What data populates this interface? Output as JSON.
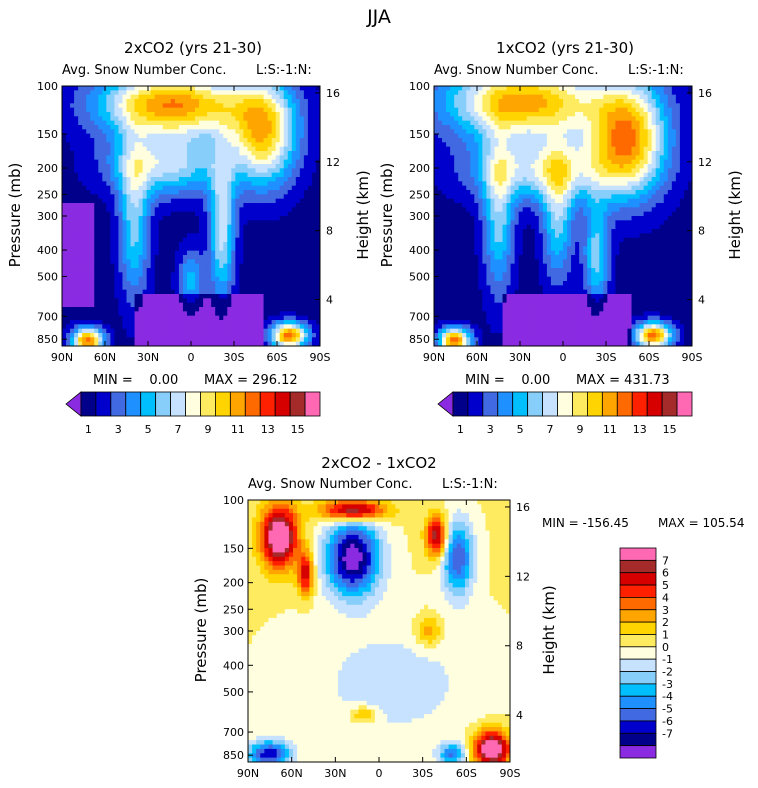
{
  "figure_title": "JJA",
  "chart_data": [
    {
      "type": "heatmap",
      "title": "2xCO2 (yrs 21-30)",
      "subtitle_left": "Avg. Snow Number Conc.",
      "subtitle_right": "L:S:-1:N:",
      "xlabel": "",
      "ylabel": "Pressure (mb)",
      "ylabel_right": "Height (km)",
      "x_ticks": [
        "90N",
        "60N",
        "30N",
        "0",
        "30S",
        "60S",
        "90S"
      ],
      "y_ticks_pressure": [
        "100",
        "150",
        "200",
        "250",
        "300",
        "400",
        "500",
        "700",
        "850"
      ],
      "y_ticks_height": [
        "16",
        "12",
        "8",
        "4"
      ],
      "min_label": "MIN =    0.00",
      "max_label": "MAX = 296.12",
      "min": 0.0,
      "max": 296.12,
      "colorbar_ticks": [
        "1",
        "3",
        "5",
        "7",
        "9",
        "11",
        "13",
        "15"
      ]
    },
    {
      "type": "heatmap",
      "title": "1xCO2 (yrs 21-30)",
      "subtitle_left": "Avg. Snow Number Conc.",
      "subtitle_right": "L:S:-1:N:",
      "xlabel": "",
      "ylabel": "Pressure (mb)",
      "ylabel_right": "Height (km)",
      "x_ticks": [
        "90N",
        "60N",
        "30N",
        "0",
        "30S",
        "60S",
        "90S"
      ],
      "y_ticks_pressure": [
        "100",
        "150",
        "200",
        "250",
        "300",
        "400",
        "500",
        "700",
        "850"
      ],
      "y_ticks_height": [
        "16",
        "12",
        "8",
        "4"
      ],
      "min_label": "MIN =    0.00",
      "max_label": "MAX = 431.73",
      "min": 0.0,
      "max": 431.73,
      "colorbar_ticks": [
        "1",
        "3",
        "5",
        "7",
        "9",
        "11",
        "13",
        "15"
      ]
    },
    {
      "type": "heatmap",
      "title": "2xCO2 - 1xCO2",
      "subtitle_left": "Avg. Snow Number Conc.",
      "subtitle_right": "L:S:-1:N:",
      "xlabel": "",
      "ylabel": "Pressure (mb)",
      "ylabel_right": "Height (km)",
      "x_ticks": [
        "90N",
        "60N",
        "30N",
        "0",
        "30S",
        "60S",
        "90S"
      ],
      "y_ticks_pressure": [
        "100",
        "150",
        "200",
        "250",
        "300",
        "400",
        "500",
        "700",
        "850"
      ],
      "y_ticks_height": [
        "16",
        "12",
        "8",
        "4"
      ],
      "min_label": "MIN = -156.45",
      "max_label": "MAX = 105.54",
      "min": -156.45,
      "max": 105.54,
      "colorbar_ticks": [
        "7",
        "6",
        "5",
        "4",
        "3",
        "2",
        "1",
        "0",
        "-1",
        "-2",
        "-3",
        "-4",
        "-5",
        "-6",
        "-7"
      ]
    }
  ],
  "palette_abs": [
    "#8a2be2",
    "#00008b",
    "#0000cd",
    "#4169e1",
    "#1e90ff",
    "#00bfff",
    "#87cefa",
    "#c6e2ff",
    "#ffffe0",
    "#ffeb60",
    "#ffd400",
    "#ffa500",
    "#ff6a00",
    "#ff2000",
    "#d60000",
    "#a52a2a",
    "#ff69b4"
  ],
  "palette_diff": [
    "#ff69b4",
    "#a52a2a",
    "#d60000",
    "#ff2000",
    "#ff6a00",
    "#ffa500",
    "#ffd400",
    "#ffeb60",
    "#ffffe0",
    "#c6e2ff",
    "#87cefa",
    "#00bfff",
    "#1e90ff",
    "#4169e1",
    "#0000cd",
    "#00008b",
    "#8a2be2"
  ]
}
